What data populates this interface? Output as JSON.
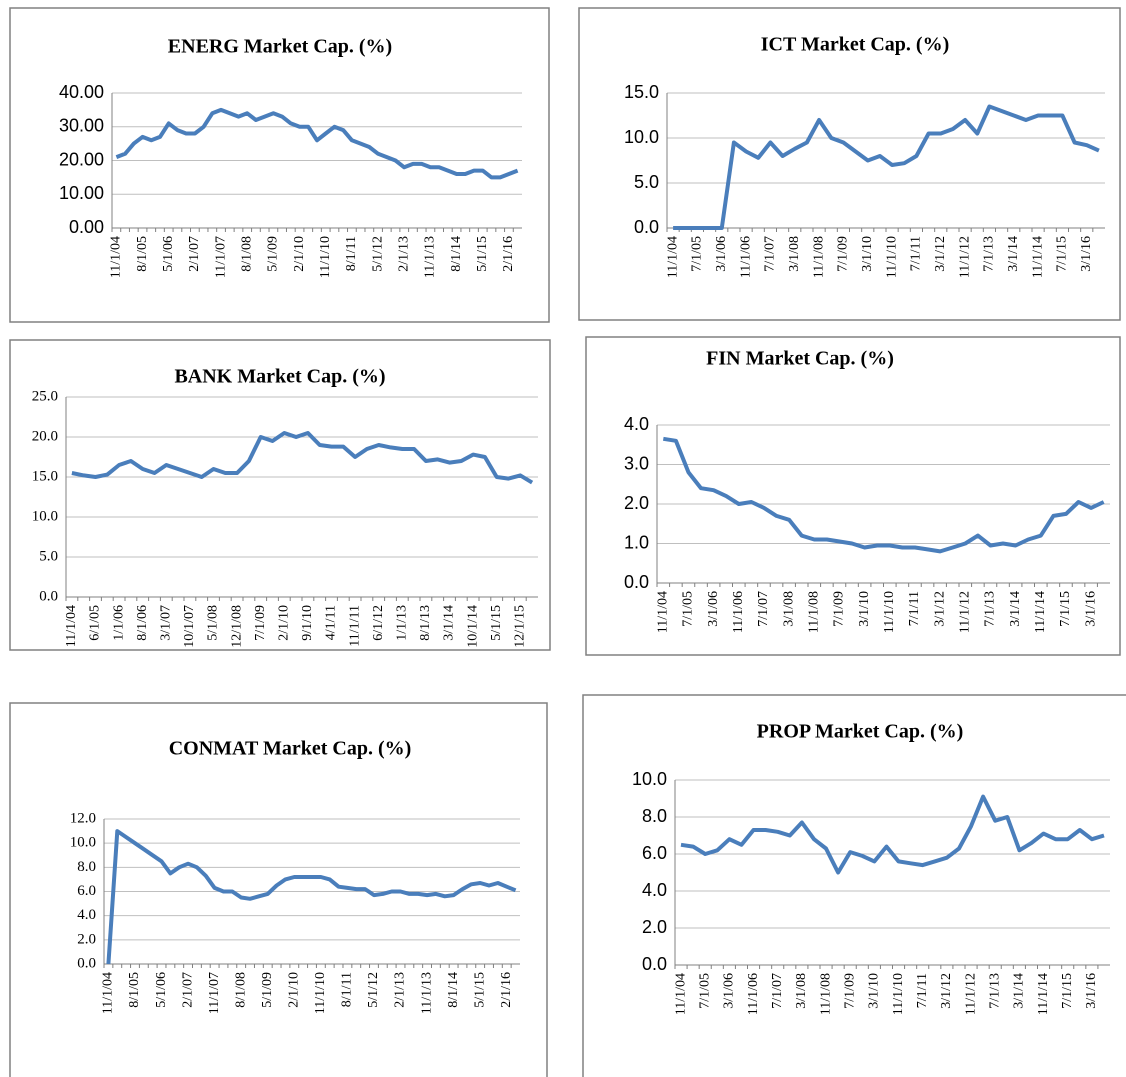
{
  "chart_data": [
    {
      "type": "line",
      "title": "ENERG Market  Cap. (%)",
      "color": "#4a7ebb",
      "grid": true,
      "categories": [
        "11/1/04",
        null,
        null,
        "8/1/05",
        null,
        null,
        "5/1/06",
        null,
        null,
        "2/1/07",
        null,
        null,
        "11/1/07",
        null,
        null,
        "8/1/08",
        null,
        null,
        "5/1/09",
        null,
        null,
        "2/1/10",
        null,
        null,
        "11/1/10",
        null,
        null,
        "8/1/11",
        null,
        null,
        "5/1/12",
        null,
        null,
        "2/1/13",
        null,
        null,
        "11/1/13",
        null,
        null,
        "8/1/14",
        null,
        null,
        "5/1/15",
        null,
        null,
        "2/1/16",
        null
      ],
      "values": [
        21,
        22,
        25,
        27,
        26,
        27,
        31,
        29,
        28,
        28,
        30,
        34,
        35,
        34,
        33,
        34,
        32,
        33,
        34,
        33,
        31,
        30,
        30,
        26,
        28,
        30,
        29,
        26,
        25,
        24,
        22,
        21,
        20,
        18,
        19,
        19,
        18,
        18,
        17,
        16,
        16,
        17,
        17,
        15,
        15,
        16,
        17
      ],
      "ylim": [
        0,
        40
      ],
      "yticks": [
        {
          "value": 0,
          "label": "0.00"
        },
        {
          "value": 10,
          "label": "10.00"
        },
        {
          "value": 20,
          "label": "20.00"
        },
        {
          "value": 30,
          "label": "30.00"
        },
        {
          "value": 40,
          "label": "40.00"
        }
      ]
    },
    {
      "type": "line",
      "title": "ICT Market Cap. (%)",
      "color": "#4a7ebb",
      "grid": true,
      "categories": [
        "11/1/04",
        null,
        "7/1/05",
        null,
        "3/1/06",
        null,
        "11/1/06",
        null,
        "7/1/07",
        null,
        "3/1/08",
        null,
        "11/1/08",
        null,
        "7/1/09",
        null,
        "3/1/10",
        null,
        "11/1/10",
        null,
        "7/1/11",
        null,
        "3/1/12",
        null,
        "11/1/12",
        null,
        "7/1/13",
        null,
        "3/1/14",
        null,
        "11/1/14",
        null,
        "7/1/15",
        null,
        "3/1/16",
        null
      ],
      "values": [
        0,
        0,
        0,
        0,
        0,
        9.5,
        8.5,
        7.8,
        9.5,
        8,
        8.8,
        9.5,
        12,
        10,
        9.5,
        8.5,
        7.5,
        8,
        7,
        7.2,
        8,
        10.5,
        10.5,
        11,
        12,
        10.5,
        13.5,
        13,
        12.5,
        12,
        12.5,
        12.5,
        12.5,
        9.5,
        9.2,
        8.6
      ],
      "ylim": [
        0,
        15
      ],
      "yticks": [
        {
          "value": 0,
          "label": "0.0"
        },
        {
          "value": 5,
          "label": "5.0"
        },
        {
          "value": 10,
          "label": "10.0"
        },
        {
          "value": 15,
          "label": "15.0"
        }
      ]
    },
    {
      "type": "line",
      "title": "BANK Market  Cap. (%)",
      "color": "#4a7ebb",
      "grid": true,
      "categories": [
        "11/1/04",
        null,
        "6/1/05",
        null,
        "1/1/06",
        null,
        "8/1/06",
        null,
        "3/1/07",
        null,
        "10/1/07",
        null,
        "5/1/08",
        null,
        "12/1/08",
        null,
        "7/1/09",
        null,
        "2/1/10",
        null,
        "9/1/10",
        null,
        "4/1/11",
        null,
        "11/1/11",
        null,
        "6/1/12",
        null,
        "1/1/13",
        null,
        "8/1/13",
        null,
        "3/1/14",
        null,
        "10/1/14",
        null,
        "5/1/15",
        null,
        "12/1/15",
        null
      ],
      "values": [
        15.5,
        15.2,
        15,
        15.3,
        16.5,
        17,
        16,
        15.5,
        16.5,
        16,
        15.5,
        15,
        16,
        15.5,
        15.5,
        17,
        20,
        19.5,
        20.5,
        20,
        20.5,
        19,
        18.8,
        18.8,
        17.5,
        18.5,
        19,
        18.7,
        18.5,
        18.5,
        17,
        17.2,
        16.8,
        17,
        17.8,
        17.5,
        15,
        14.8,
        15.2,
        14.3
      ],
      "ylim": [
        0,
        25
      ],
      "yticks": [
        {
          "value": 0,
          "label": "0.0"
        },
        {
          "value": 5,
          "label": "5.0"
        },
        {
          "value": 10,
          "label": "10.0"
        },
        {
          "value": 15,
          "label": "15.0"
        },
        {
          "value": 20,
          "label": "20.0"
        },
        {
          "value": 25,
          "label": "25.0"
        }
      ]
    },
    {
      "type": "line",
      "title": "FIN Market Cap. (%)",
      "color": "#4a7ebb",
      "grid": true,
      "categories": [
        "11/1/04",
        null,
        "7/1/05",
        null,
        "3/1/06",
        null,
        "11/1/06",
        null,
        "7/1/07",
        null,
        "3/1/08",
        null,
        "11/1/08",
        null,
        "7/1/09",
        null,
        "3/1/10",
        null,
        "11/1/10",
        null,
        "7/1/11",
        null,
        "3/1/12",
        null,
        "11/1/12",
        null,
        "7/1/13",
        null,
        "3/1/14",
        null,
        "11/1/14",
        null,
        "7/1/15",
        null,
        "3/1/16",
        null
      ],
      "values": [
        3.65,
        3.6,
        2.8,
        2.4,
        2.35,
        2.2,
        2.0,
        2.05,
        1.9,
        1.7,
        1.6,
        1.2,
        1.1,
        1.1,
        1.05,
        1.0,
        0.9,
        0.95,
        0.95,
        0.9,
        0.9,
        0.85,
        0.8,
        0.9,
        1.0,
        1.2,
        0.95,
        1.0,
        0.95,
        1.1,
        1.2,
        1.7,
        1.75,
        2.05,
        1.9,
        2.05
      ],
      "ylim": [
        0,
        4
      ],
      "yticks": [
        {
          "value": 0,
          "label": "0.0"
        },
        {
          "value": 1,
          "label": "1.0"
        },
        {
          "value": 2,
          "label": "2.0"
        },
        {
          "value": 3,
          "label": "3.0"
        },
        {
          "value": 4,
          "label": "4.0"
        }
      ]
    },
    {
      "type": "line",
      "title": "CONMAT Market Cap. (%)",
      "color": "#4a7ebb",
      "grid": true,
      "categories": [
        "11/1/04",
        null,
        null,
        "8/1/05",
        null,
        null,
        "5/1/06",
        null,
        null,
        "2/1/07",
        null,
        null,
        "11/1/07",
        null,
        null,
        "8/1/08",
        null,
        null,
        "5/1/09",
        null,
        null,
        "2/1/10",
        null,
        null,
        "11/1/10",
        null,
        null,
        "8/1/11",
        null,
        null,
        "5/1/12",
        null,
        null,
        "2/1/13",
        null,
        null,
        "11/1/13",
        null,
        null,
        "8/1/14",
        null,
        null,
        "5/1/15",
        null,
        null,
        "2/1/16",
        null
      ],
      "values": [
        0,
        11,
        10.5,
        10,
        9.5,
        9,
        8.5,
        7.5,
        8,
        8.3,
        8,
        7.3,
        6.3,
        6,
        6,
        5.5,
        5.4,
        5.6,
        5.8,
        6.5,
        7,
        7.2,
        7.2,
        7.2,
        7.2,
        7,
        6.4,
        6.3,
        6.2,
        6.2,
        5.7,
        5.8,
        6,
        6,
        5.8,
        5.8,
        5.7,
        5.8,
        5.6,
        5.7,
        6.2,
        6.6,
        6.7,
        6.5,
        6.7,
        6.4,
        6.1
      ],
      "ylim": [
        0,
        12
      ],
      "yticks": [
        {
          "value": 0,
          "label": "0.0"
        },
        {
          "value": 2,
          "label": "2.0"
        },
        {
          "value": 4,
          "label": "4.0"
        },
        {
          "value": 6,
          "label": "6.0"
        },
        {
          "value": 8,
          "label": "8.0"
        },
        {
          "value": 10,
          "label": "10.0"
        },
        {
          "value": 12,
          "label": "12.0"
        }
      ]
    },
    {
      "type": "line",
      "title": "PROP Market  Cap. (%)",
      "color": "#4a7ebb",
      "grid": true,
      "categories": [
        "11/1/04",
        null,
        "7/1/05",
        null,
        "3/1/06",
        null,
        "11/1/06",
        null,
        "7/1/07",
        null,
        "3/1/08",
        null,
        "11/1/08",
        null,
        "7/1/09",
        null,
        "3/1/10",
        null,
        "11/1/10",
        null,
        "7/1/11",
        null,
        "3/1/12",
        null,
        "11/1/12",
        null,
        "7/1/13",
        null,
        "3/1/14",
        null,
        "11/1/14",
        null,
        "7/1/15",
        null,
        "3/1/16",
        null
      ],
      "values": [
        6.5,
        6.4,
        6,
        6.2,
        6.8,
        6.5,
        7.3,
        7.3,
        7.2,
        7,
        7.7,
        6.8,
        6.3,
        5,
        6.1,
        5.9,
        5.6,
        6.4,
        5.6,
        5.5,
        5.4,
        5.6,
        5.8,
        6.3,
        7.5,
        9.1,
        7.8,
        8.0,
        6.2,
        6.6,
        7.1,
        6.8,
        6.8,
        7.3,
        6.8,
        7.0
      ],
      "ylim": [
        0,
        10
      ],
      "yticks": [
        {
          "value": 0,
          "label": "0.0"
        },
        {
          "value": 2,
          "label": "2.0"
        },
        {
          "value": 4,
          "label": "4.0"
        },
        {
          "value": 6,
          "label": "6.0"
        },
        {
          "value": 8,
          "label": "8.0"
        },
        {
          "value": 10,
          "label": "10.0"
        }
      ]
    }
  ]
}
